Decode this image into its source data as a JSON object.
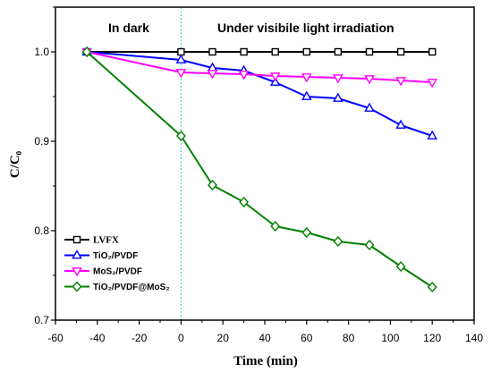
{
  "chart_data": {
    "type": "line",
    "xlabel": "Time (min)",
    "ylabel": "C/C₀",
    "xlim": [
      -60,
      140
    ],
    "ylim": [
      0.7,
      1.05
    ],
    "xticks": [
      -60,
      -40,
      -20,
      0,
      20,
      40,
      60,
      80,
      100,
      120,
      140
    ],
    "xtick_labels": [
      "-60",
      "-40",
      "-20",
      "0",
      "20",
      "40",
      "60",
      "80",
      "100",
      "120",
      "140"
    ],
    "yticks": [
      0.7,
      0.8,
      0.9,
      1.0
    ],
    "ytick_labels": [
      "0.7",
      "0.8",
      "0.9",
      "1.0"
    ],
    "grid": false,
    "legend": "bottom-left",
    "annotations": [
      "In dark",
      "Under visibile light irradiation"
    ],
    "reference_line": {
      "x": 0,
      "color": "#4fd2d2"
    },
    "x": [
      -45,
      0,
      15,
      30,
      45,
      60,
      75,
      90,
      105,
      120
    ],
    "series": [
      {
        "name": "LVFX",
        "color": "#000000",
        "marker": "square",
        "values": [
          1.0,
          1.0,
          1.0,
          1.0,
          1.0,
          1.0,
          1.0,
          1.0,
          1.0,
          1.0
        ]
      },
      {
        "name": "TiO₂/PVDF",
        "color": "#0000ff",
        "marker": "triangle-up",
        "values": [
          1.0,
          0.991,
          0.982,
          0.979,
          0.966,
          0.95,
          0.948,
          0.937,
          0.918,
          0.906
        ]
      },
      {
        "name": "MoS₂/PVDF",
        "color": "#ff00ff",
        "marker": "triangle-down",
        "values": [
          1.0,
          0.977,
          0.976,
          0.975,
          0.973,
          0.972,
          0.971,
          0.97,
          0.968,
          0.966
        ]
      },
      {
        "name": "TiO₂/PVDF@MoS₂",
        "color": "#008000",
        "marker": "diamond",
        "values": [
          1.0,
          0.906,
          0.851,
          0.832,
          0.805,
          0.798,
          0.788,
          0.784,
          0.76,
          0.737
        ]
      }
    ]
  }
}
